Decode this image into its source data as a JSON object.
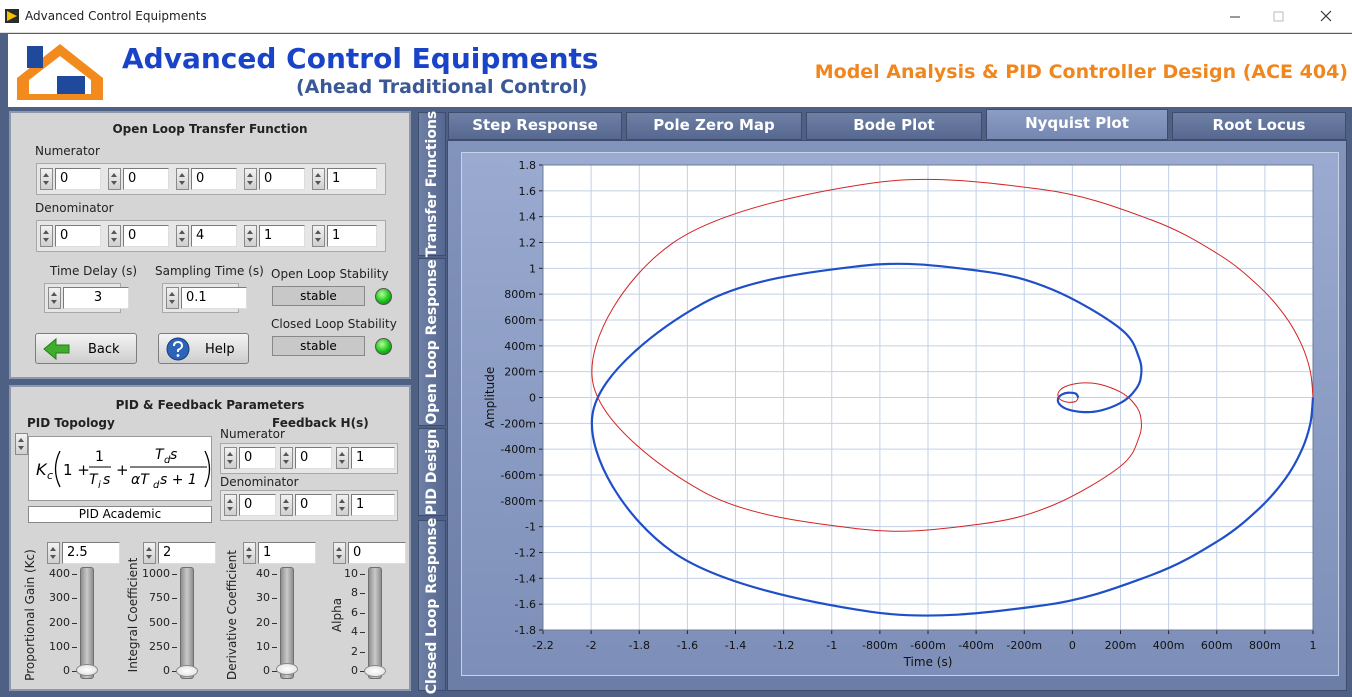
{
  "window": {
    "title": "Advanced Control Equipments"
  },
  "header": {
    "title": "Advanced Control Equipments",
    "subtitle": "(Ahead Traditional Control)",
    "product": "Model Analysis & PID Controller Design (ACE 404)"
  },
  "open_loop": {
    "title": "Open Loop Transfer Function",
    "numerator_label": "Numerator",
    "numerator": [
      0,
      0,
      0,
      0,
      1
    ],
    "denominator_label": "Denominator",
    "denominator": [
      0,
      0,
      4,
      1,
      1
    ],
    "time_delay_label": "Time Delay (s)",
    "time_delay": 3,
    "sampling_time_label": "Sampling Time (s)",
    "sampling_time": 0.1,
    "open_loop_stability_label": "Open Loop Stability",
    "open_loop_stability": "stable",
    "closed_loop_stability_label": "Closed Loop Stability",
    "closed_loop_stability": "stable",
    "back": "Back",
    "help": "Help"
  },
  "pid": {
    "title": "PID & Feedback Parameters",
    "topology_label": "PID Topology",
    "topology": "PID Academic",
    "formula": {
      "k": "K",
      "c": "c",
      "one_plus": "1 +",
      "one": "1",
      "t": "T",
      "i": "i",
      "s": "s",
      "plus": "+",
      "td": "T",
      "d": "d",
      "s2": "s",
      "alpha_t": "αT",
      "d2": "d",
      "s_plus_1": "s + 1"
    },
    "feedback_label": "Feedback H(s)",
    "fb_numerator_label": "Numerator",
    "fb_numerator": [
      0,
      0,
      1
    ],
    "fb_denominator_label": "Denominator",
    "fb_denominator": [
      0,
      0,
      1
    ],
    "sliders": [
      {
        "label": "Proportional Gain (Kc)",
        "value": 2.5,
        "scale": [
          0,
          100,
          200,
          300,
          400
        ]
      },
      {
        "label": "Integral Coefficient",
        "value": 2,
        "scale": [
          0,
          250,
          500,
          750,
          1000
        ]
      },
      {
        "label": "Derivative Coefficient",
        "value": 1,
        "scale": [
          0,
          10,
          20,
          30,
          40
        ]
      },
      {
        "label": "Alpha",
        "value": 0,
        "scale": [
          0,
          2,
          4,
          6,
          8,
          10
        ]
      }
    ]
  },
  "side_tabs": [
    "Transfer Functions",
    "Open Loop Response",
    "PID Design",
    "Closed Loop Response"
  ],
  "tabs": [
    "Step Response",
    "Pole Zero Map",
    "Bode Plot",
    "Nyquist Plot",
    "Root Locus"
  ],
  "chart_data": {
    "type": "line",
    "x_label": "Time (s)",
    "y_label": "Amplitude",
    "x": [
      1,
      0.989,
      0.953,
      0.887,
      0.778,
      0.606,
      0.325,
      -0.131,
      -0.837,
      -1.663,
      -1.995,
      -1.535,
      -0.877,
      -0.388,
      -0.085,
      0.198,
      0.277,
      0.283,
      0.249,
      0.199,
      0.119,
      0.048,
      -0.021,
      -0.055,
      -0.059,
      -0.043,
      -0.018,
      0.014,
      0.025
    ],
    "series": [
      {
        "color": "#1f4fc8",
        "values": [
          0,
          -0.201,
          -0.407,
          -0.624,
          -0.857,
          -1.11,
          -1.377,
          -1.612,
          -1.659,
          -1.193,
          -0.141,
          0.729,
          1.019,
          0.981,
          0.837,
          0.535,
          0.308,
          0.141,
          0.03,
          -0.043,
          -0.1,
          -0.113,
          -0.091,
          -0.049,
          -0.006,
          0.024,
          0.037,
          0.03,
          -0.002
        ]
      },
      {
        "color": "#d42424",
        "values": [
          0,
          0.201,
          0.407,
          0.624,
          0.857,
          1.11,
          1.377,
          1.612,
          1.659,
          1.193,
          0.141,
          -0.729,
          -1.019,
          -0.981,
          -0.837,
          -0.535,
          -0.308,
          -0.141,
          -0.03,
          0.043,
          0.1,
          0.113,
          0.091,
          0.049,
          0.006,
          -0.024,
          -0.037,
          -0.03,
          0.002
        ]
      }
    ],
    "xlim": [
      -2.2,
      1
    ],
    "ylim": [
      -1.8,
      1.8
    ],
    "xticks": [
      -2.2,
      -2,
      -1.8,
      -1.6,
      -1.4,
      -1.2,
      -1,
      {
        "value": -0.8,
        "label": "-800m"
      },
      {
        "value": -0.6,
        "label": "-600m"
      },
      {
        "value": -0.4,
        "label": "-400m"
      },
      {
        "value": -0.2,
        "label": "-200m"
      },
      0,
      {
        "value": 0.2,
        "label": "200m"
      },
      {
        "value": 0.4,
        "label": "400m"
      },
      {
        "value": 0.6,
        "label": "600m"
      },
      {
        "value": 0.8,
        "label": "800m"
      },
      1
    ],
    "yticks": [
      -1.8,
      -1.6,
      -1.4,
      -1.2,
      -1,
      {
        "value": -0.8,
        "label": "-800m"
      },
      {
        "value": -0.6,
        "label": "-600m"
      },
      {
        "value": -0.4,
        "label": "-400m"
      },
      {
        "value": -0.2,
        "label": "-200m"
      },
      0,
      {
        "value": 0.2,
        "label": "200m"
      },
      {
        "value": 0.4,
        "label": "400m"
      },
      {
        "value": 0.6,
        "label": "600m"
      },
      {
        "value": 0.8,
        "label": "800m"
      },
      1,
      1.2,
      1.4,
      1.6,
      1.8
    ],
    "grid": true
  }
}
